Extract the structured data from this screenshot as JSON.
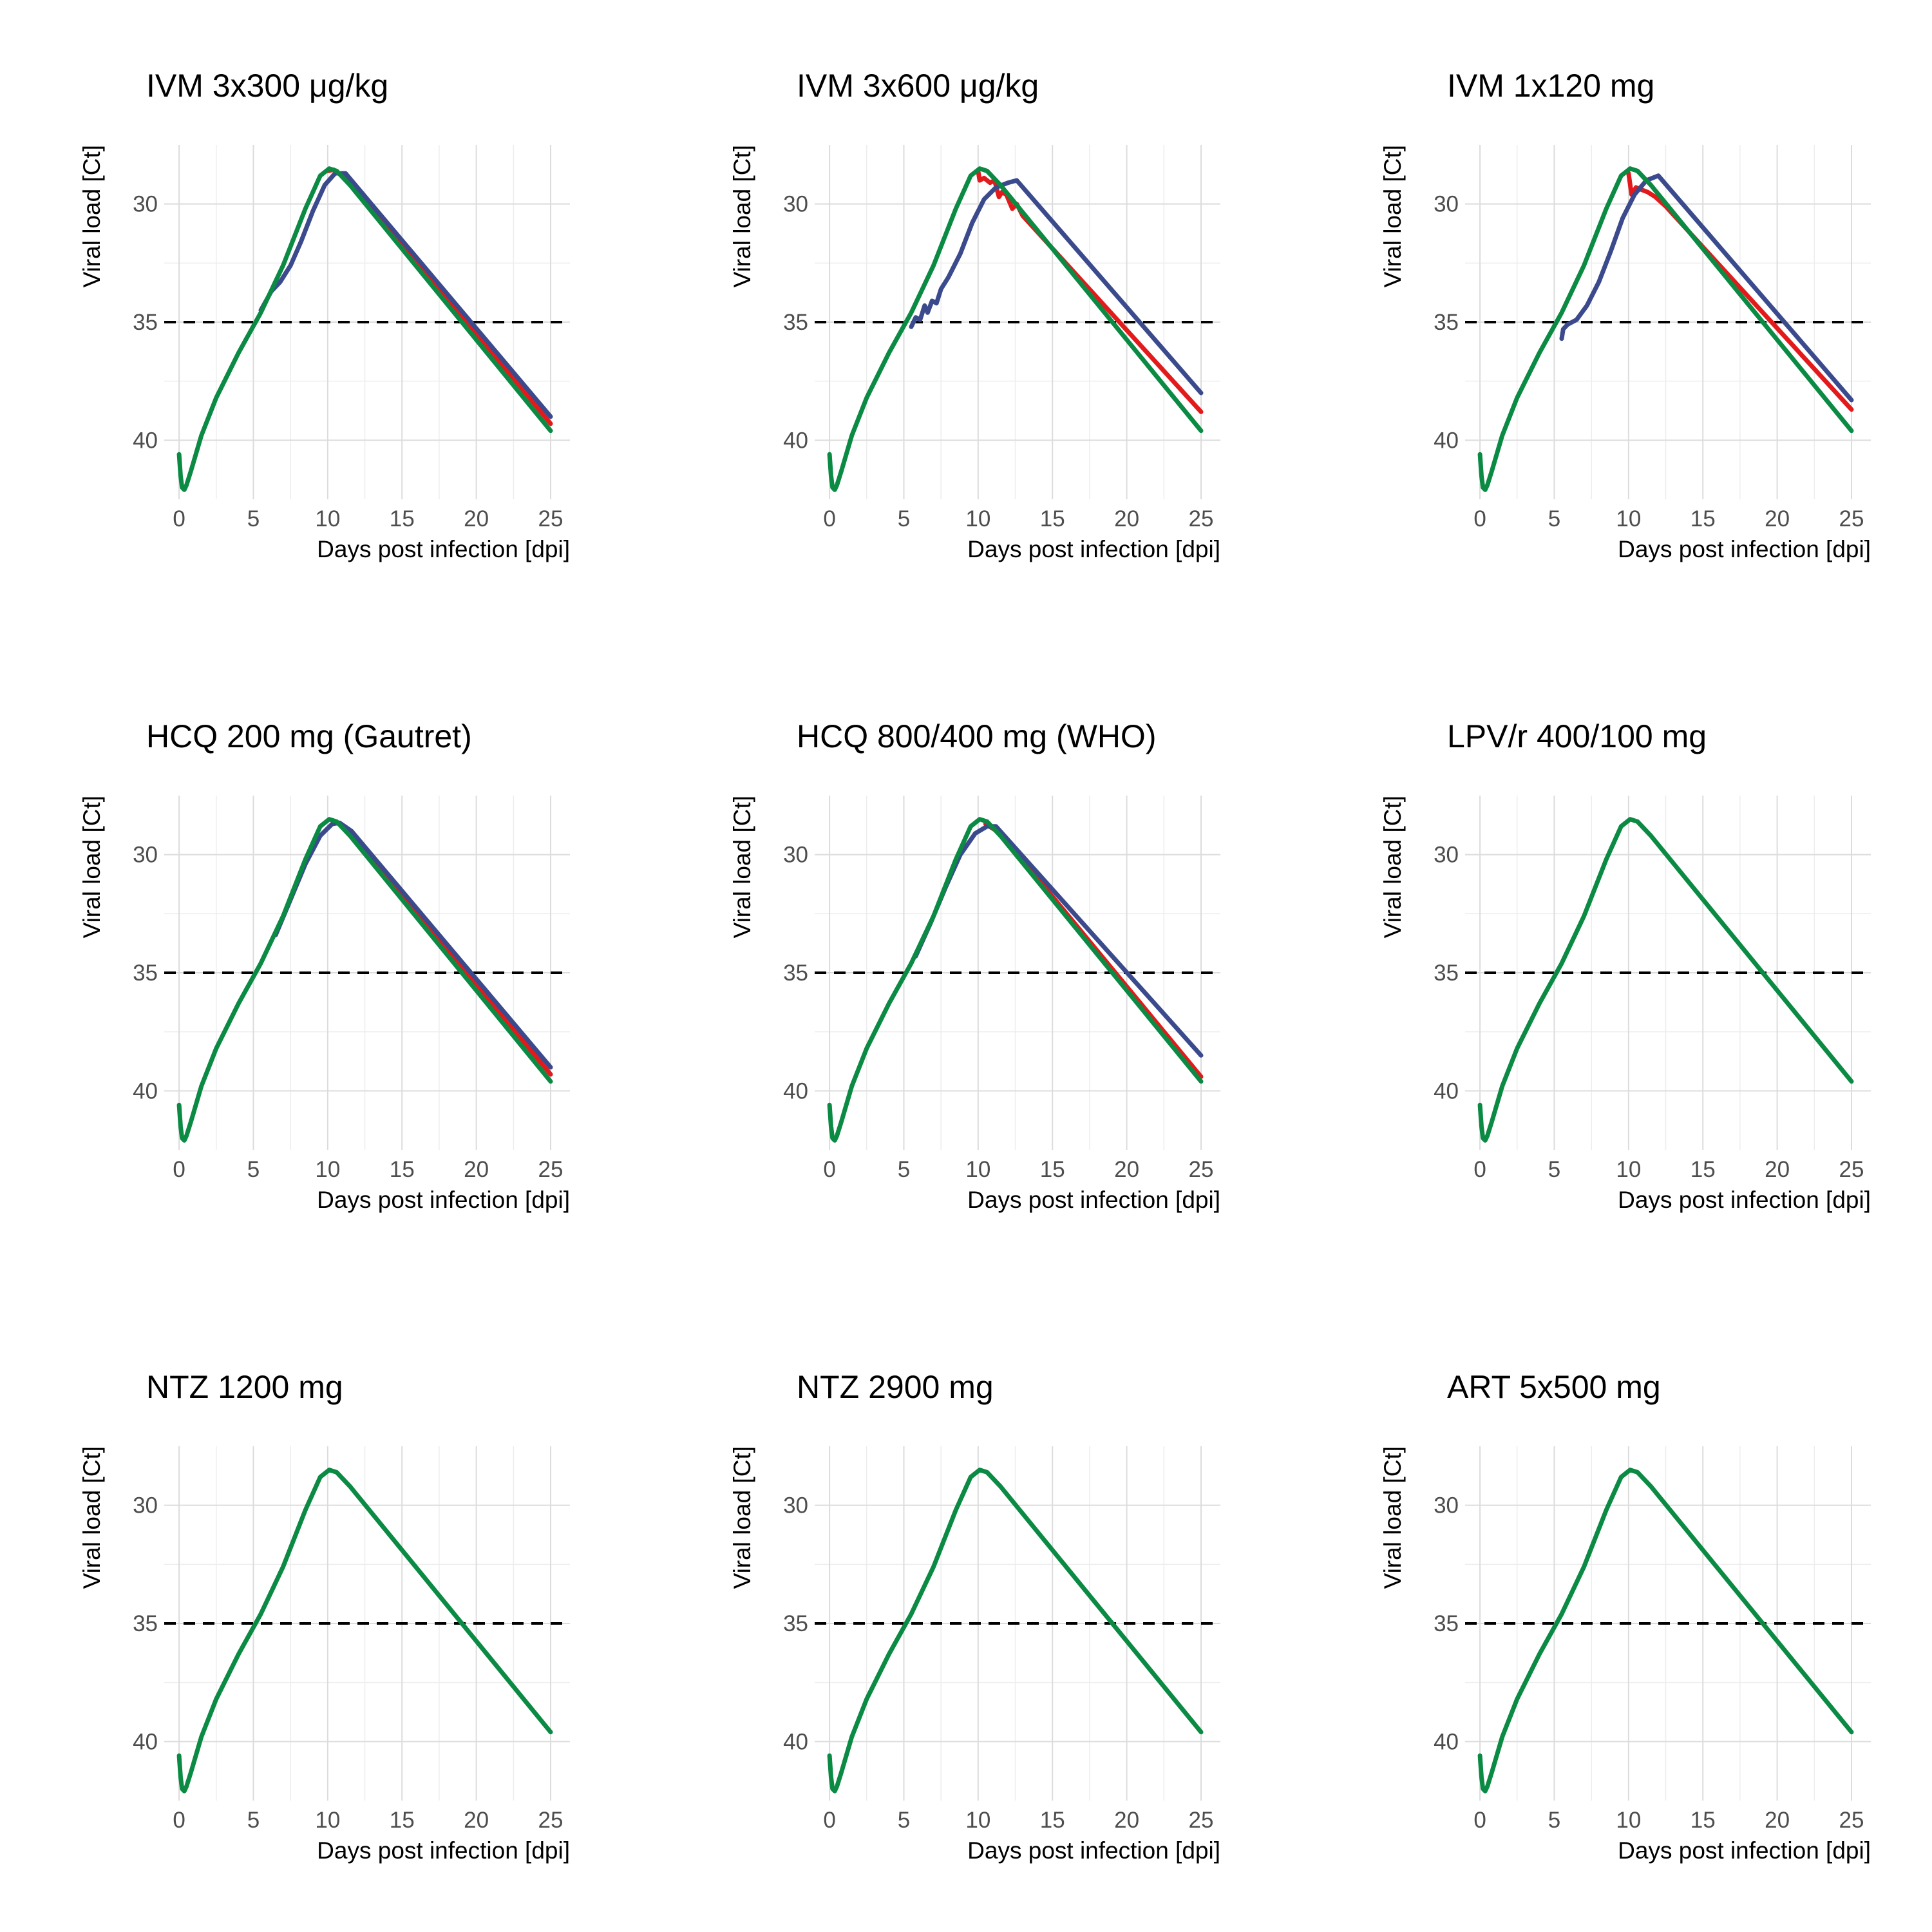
{
  "colors": {
    "red": "#e31a1c",
    "blue": "#3a4a8c",
    "green": "#0b8a44",
    "threshold": "#000000"
  },
  "chart_data": [
    {
      "type": "line",
      "title": "IVM 3x300 μg/kg",
      "xlabel": "Days post infection [dpi]",
      "ylabel": "Viral load [Ct]",
      "xlim": [
        -1,
        26.3
      ],
      "ylim": [
        27.5,
        42.5
      ],
      "y_reversed": true,
      "x_ticks": [
        0,
        5,
        10,
        15,
        20,
        25
      ],
      "y_ticks": [
        30,
        35,
        40
      ],
      "grid": true,
      "threshold": 35,
      "series": [
        {
          "color": "red",
          "x": [
            10.0,
            10.4,
            11.0,
            11.6,
            12.2,
            13.0,
            25.0
          ],
          "y": [
            28.6,
            28.55,
            28.8,
            29.1,
            29.6,
            30.1,
            39.3
          ]
        },
        {
          "color": "blue",
          "x": [
            5.5,
            6.2,
            6.8,
            7.5,
            8.2,
            9.0,
            9.8,
            10.5,
            11.2,
            25.0
          ],
          "y": [
            34.5,
            33.7,
            33.3,
            32.6,
            31.6,
            30.3,
            29.2,
            28.7,
            28.7,
            39.0
          ]
        },
        {
          "color": "green",
          "x": [
            0.0,
            0.1,
            0.2,
            0.35,
            0.5,
            0.8,
            1.5,
            2.5,
            4.0,
            5.5,
            7.0,
            8.5,
            9.5,
            10.1,
            10.6,
            11.5,
            25.0
          ],
          "y": [
            40.6,
            41.5,
            42.0,
            42.1,
            41.9,
            41.3,
            39.8,
            38.2,
            36.3,
            34.6,
            32.6,
            30.2,
            28.8,
            28.5,
            28.6,
            29.2,
            39.6
          ]
        }
      ]
    },
    {
      "type": "line",
      "title": "IVM 3x600 μg/kg",
      "xlabel": "Days post infection [dpi]",
      "ylabel": "Viral load [Ct]",
      "xlim": [
        -1,
        26.3
      ],
      "ylim": [
        27.5,
        42.5
      ],
      "y_reversed": true,
      "x_ticks": [
        0,
        5,
        10,
        15,
        20,
        25
      ],
      "y_ticks": [
        30,
        35,
        40
      ],
      "grid": true,
      "threshold": 35,
      "series": [
        {
          "color": "red",
          "x": [
            10.0,
            10.1,
            10.4,
            10.8,
            11.1,
            11.4,
            11.6,
            11.9,
            12.3,
            12.6,
            13.0,
            25.0
          ],
          "y": [
            28.6,
            29.0,
            28.9,
            29.1,
            29.0,
            29.7,
            29.5,
            29.6,
            30.2,
            30.0,
            30.5,
            38.8
          ]
        },
        {
          "color": "blue",
          "x": [
            5.5,
            5.8,
            6.1,
            6.4,
            6.6,
            6.9,
            7.2,
            7.5,
            8.0,
            8.8,
            9.6,
            10.4,
            11.2,
            12.0,
            12.6,
            25.0
          ],
          "y": [
            35.2,
            34.8,
            34.9,
            34.3,
            34.6,
            34.1,
            34.2,
            33.6,
            33.1,
            32.1,
            30.8,
            29.8,
            29.3,
            29.1,
            29.0,
            38.0
          ]
        },
        {
          "color": "green",
          "x": [
            0.0,
            0.1,
            0.2,
            0.35,
            0.5,
            0.8,
            1.5,
            2.5,
            4.0,
            5.5,
            7.0,
            8.5,
            9.5,
            10.1,
            10.6,
            11.5,
            25.0
          ],
          "y": [
            40.6,
            41.5,
            42.0,
            42.1,
            41.9,
            41.3,
            39.8,
            38.2,
            36.3,
            34.6,
            32.6,
            30.2,
            28.8,
            28.5,
            28.6,
            29.2,
            39.6
          ]
        }
      ]
    },
    {
      "type": "line",
      "title": "IVM 1x120 mg",
      "xlabel": "Days post infection [dpi]",
      "ylabel": "Viral load [Ct]",
      "xlim": [
        -1,
        26.3
      ],
      "ylim": [
        27.5,
        42.5
      ],
      "y_reversed": true,
      "x_ticks": [
        0,
        5,
        10,
        15,
        20,
        25
      ],
      "y_ticks": [
        30,
        35,
        40
      ],
      "grid": true,
      "threshold": 35,
      "series": [
        {
          "color": "red",
          "x": [
            10.0,
            10.2,
            10.5,
            10.9,
            11.3,
            11.8,
            12.5,
            25.0
          ],
          "y": [
            28.7,
            29.6,
            29.3,
            29.4,
            29.5,
            29.7,
            30.1,
            38.7
          ]
        },
        {
          "color": "blue",
          "x": [
            5.5,
            5.6,
            5.9,
            6.5,
            7.2,
            8.0,
            8.8,
            9.6,
            10.4,
            11.2,
            12.0,
            25.0
          ],
          "y": [
            35.7,
            35.3,
            35.1,
            34.9,
            34.3,
            33.3,
            32.0,
            30.6,
            29.6,
            29.0,
            28.8,
            38.3
          ]
        },
        {
          "color": "green",
          "x": [
            0.0,
            0.1,
            0.2,
            0.35,
            0.5,
            0.8,
            1.5,
            2.5,
            4.0,
            5.5,
            7.0,
            8.5,
            9.5,
            10.1,
            10.6,
            11.5,
            25.0
          ],
          "y": [
            40.6,
            41.5,
            42.0,
            42.1,
            41.9,
            41.3,
            39.8,
            38.2,
            36.3,
            34.6,
            32.6,
            30.2,
            28.8,
            28.5,
            28.6,
            29.2,
            39.6
          ]
        }
      ]
    },
    {
      "type": "line",
      "title": "HCQ 200 mg (Gautret)",
      "xlabel": "Days post infection [dpi]",
      "ylabel": "Viral load [Ct]",
      "xlim": [
        -1,
        26.3
      ],
      "ylim": [
        27.5,
        42.5
      ],
      "y_reversed": true,
      "x_ticks": [
        0,
        5,
        10,
        15,
        20,
        25
      ],
      "y_ticks": [
        30,
        35,
        40
      ],
      "grid": true,
      "threshold": 35,
      "series": [
        {
          "color": "red",
          "x": [
            10.5,
            11.5,
            25.0
          ],
          "y": [
            28.6,
            29.0,
            39.3
          ]
        },
        {
          "color": "blue",
          "x": [
            6.5,
            7.5,
            8.5,
            9.5,
            10.3,
            10.8,
            11.6,
            25.0
          ],
          "y": [
            33.4,
            31.9,
            30.4,
            29.2,
            28.7,
            28.65,
            29.0,
            39.0
          ]
        },
        {
          "color": "green",
          "x": [
            0.0,
            0.1,
            0.2,
            0.35,
            0.5,
            0.8,
            1.5,
            2.5,
            4.0,
            5.5,
            7.0,
            8.5,
            9.5,
            10.1,
            10.6,
            11.5,
            25.0
          ],
          "y": [
            40.6,
            41.5,
            42.0,
            42.1,
            41.9,
            41.3,
            39.8,
            38.2,
            36.3,
            34.6,
            32.6,
            30.2,
            28.8,
            28.5,
            28.6,
            29.2,
            39.6
          ]
        }
      ]
    },
    {
      "type": "line",
      "title": "HCQ 800/400 mg (WHO)",
      "xlabel": "Days post infection [dpi]",
      "ylabel": "Viral load [Ct]",
      "xlim": [
        -1,
        26.3
      ],
      "ylim": [
        27.5,
        42.5
      ],
      "y_reversed": true,
      "x_ticks": [
        0,
        5,
        10,
        15,
        20,
        25
      ],
      "y_ticks": [
        30,
        35,
        40
      ],
      "grid": true,
      "threshold": 35,
      "series": [
        {
          "color": "red",
          "x": [
            10.5,
            11.5,
            25.0
          ],
          "y": [
            28.7,
            29.1,
            39.4
          ]
        },
        {
          "color": "blue",
          "x": [
            5.8,
            6.8,
            7.8,
            8.8,
            9.8,
            10.6,
            11.2,
            25.0
          ],
          "y": [
            34.3,
            32.9,
            31.4,
            30.0,
            29.1,
            28.8,
            28.8,
            38.5
          ]
        },
        {
          "color": "green",
          "x": [
            0.0,
            0.1,
            0.2,
            0.35,
            0.5,
            0.8,
            1.5,
            2.5,
            4.0,
            5.5,
            7.0,
            8.5,
            9.5,
            10.1,
            10.6,
            11.5,
            25.0
          ],
          "y": [
            40.6,
            41.5,
            42.0,
            42.1,
            41.9,
            41.3,
            39.8,
            38.2,
            36.3,
            34.6,
            32.6,
            30.2,
            28.8,
            28.5,
            28.6,
            29.2,
            39.6
          ]
        }
      ]
    },
    {
      "type": "line",
      "title": "LPV/r 400/100 mg",
      "xlabel": "Days post infection [dpi]",
      "ylabel": "Viral load [Ct]",
      "xlim": [
        -1,
        26.3
      ],
      "ylim": [
        27.5,
        42.5
      ],
      "y_reversed": true,
      "x_ticks": [
        0,
        5,
        10,
        15,
        20,
        25
      ],
      "y_ticks": [
        30,
        35,
        40
      ],
      "grid": true,
      "threshold": 35,
      "series": [
        {
          "color": "green",
          "x": [
            0.0,
            0.1,
            0.2,
            0.35,
            0.5,
            0.8,
            1.5,
            2.5,
            4.0,
            5.5,
            7.0,
            8.5,
            9.5,
            10.1,
            10.6,
            11.5,
            25.0
          ],
          "y": [
            40.6,
            41.5,
            42.0,
            42.1,
            41.9,
            41.3,
            39.8,
            38.2,
            36.3,
            34.6,
            32.6,
            30.2,
            28.8,
            28.5,
            28.6,
            29.2,
            39.6
          ]
        }
      ]
    },
    {
      "type": "line",
      "title": "NTZ 1200 mg",
      "xlabel": "Days post infection [dpi]",
      "ylabel": "Viral load [Ct]",
      "xlim": [
        -1,
        26.3
      ],
      "ylim": [
        27.5,
        42.5
      ],
      "y_reversed": true,
      "x_ticks": [
        0,
        5,
        10,
        15,
        20,
        25
      ],
      "y_ticks": [
        30,
        35,
        40
      ],
      "grid": true,
      "threshold": 35,
      "series": [
        {
          "color": "green",
          "x": [
            0.0,
            0.1,
            0.2,
            0.35,
            0.5,
            0.8,
            1.5,
            2.5,
            4.0,
            5.5,
            7.0,
            8.5,
            9.5,
            10.1,
            10.6,
            11.5,
            25.0
          ],
          "y": [
            40.6,
            41.5,
            42.0,
            42.1,
            41.9,
            41.3,
            39.8,
            38.2,
            36.3,
            34.6,
            32.6,
            30.2,
            28.8,
            28.5,
            28.6,
            29.2,
            39.6
          ]
        }
      ]
    },
    {
      "type": "line",
      "title": "NTZ 2900 mg",
      "xlabel": "Days post infection [dpi]",
      "ylabel": "Viral load [Ct]",
      "xlim": [
        -1,
        26.3
      ],
      "ylim": [
        27.5,
        42.5
      ],
      "y_reversed": true,
      "x_ticks": [
        0,
        5,
        10,
        15,
        20,
        25
      ],
      "y_ticks": [
        30,
        35,
        40
      ],
      "grid": true,
      "threshold": 35,
      "series": [
        {
          "color": "green",
          "x": [
            0.0,
            0.1,
            0.2,
            0.35,
            0.5,
            0.8,
            1.5,
            2.5,
            4.0,
            5.5,
            7.0,
            8.5,
            9.5,
            10.1,
            10.6,
            11.5,
            25.0
          ],
          "y": [
            40.6,
            41.5,
            42.0,
            42.1,
            41.9,
            41.3,
            39.8,
            38.2,
            36.3,
            34.6,
            32.6,
            30.2,
            28.8,
            28.5,
            28.6,
            29.2,
            39.6
          ]
        }
      ]
    },
    {
      "type": "line",
      "title": "ART 5x500 mg",
      "xlabel": "Days post infection [dpi]",
      "ylabel": "Viral load [Ct]",
      "xlim": [
        -1,
        26.3
      ],
      "ylim": [
        27.5,
        42.5
      ],
      "y_reversed": true,
      "x_ticks": [
        0,
        5,
        10,
        15,
        20,
        25
      ],
      "y_ticks": [
        30,
        35,
        40
      ],
      "grid": true,
      "threshold": 35,
      "series": [
        {
          "color": "green",
          "x": [
            0.0,
            0.1,
            0.2,
            0.35,
            0.5,
            0.8,
            1.5,
            2.5,
            4.0,
            5.5,
            7.0,
            8.5,
            9.5,
            10.1,
            10.6,
            11.5,
            25.0
          ],
          "y": [
            40.6,
            41.5,
            42.0,
            42.1,
            41.9,
            41.3,
            39.8,
            38.2,
            36.3,
            34.6,
            32.6,
            30.2,
            28.8,
            28.5,
            28.6,
            29.2,
            39.6
          ]
        }
      ]
    }
  ]
}
